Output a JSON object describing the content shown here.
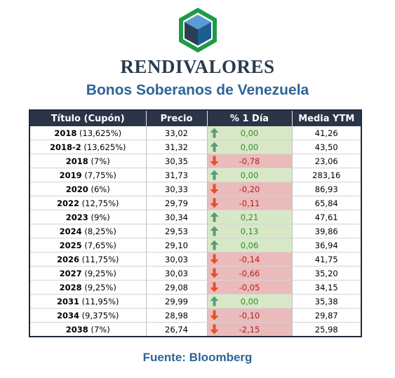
{
  "brand": "RENDIVALORES",
  "subtitle": "Bonos Soberanos de Venezuela",
  "table": {
    "headers": [
      "Título (Cupón)",
      "Precio",
      "% 1 Día",
      "Media YTM"
    ],
    "rows": [
      {
        "year": "2018",
        "coupon": "(13,625%)",
        "price": "33,02",
        "change": "0,00",
        "dir": "up",
        "ytm": "41,26"
      },
      {
        "year": "2018-2",
        "coupon": "(13,625%)",
        "price": "31,32",
        "change": "0,00",
        "dir": "up",
        "ytm": "43,50"
      },
      {
        "year": "2018",
        "coupon": "(7%)",
        "price": "30,35",
        "change": "-0,78",
        "dir": "down",
        "ytm": "23,06"
      },
      {
        "year": "2019",
        "coupon": "(7,75%)",
        "price": "31,73",
        "change": "0,00",
        "dir": "up",
        "ytm": "283,16"
      },
      {
        "year": "2020",
        "coupon": "(6%)",
        "price": "30,33",
        "change": "-0,20",
        "dir": "down",
        "ytm": "86,93"
      },
      {
        "year": "2022",
        "coupon": "(12,75%)",
        "price": "29,79",
        "change": "-0,11",
        "dir": "down",
        "ytm": "65,84"
      },
      {
        "year": "2023",
        "coupon": "(9%)",
        "price": "30,34",
        "change": "0,21",
        "dir": "up",
        "ytm": "47,61"
      },
      {
        "year": "2024",
        "coupon": "(8,25%)",
        "price": "29,53",
        "change": "0,13",
        "dir": "up",
        "ytm": "39,86"
      },
      {
        "year": "2025",
        "coupon": "(7,65%)",
        "price": "29,10",
        "change": "0,06",
        "dir": "up",
        "ytm": "36,94"
      },
      {
        "year": "2026",
        "coupon": "(11,75%)",
        "price": "30,03",
        "change": "-0,14",
        "dir": "down",
        "ytm": "41,75"
      },
      {
        "year": "2027",
        "coupon": "(9,25%)",
        "price": "30,03",
        "change": "-0,66",
        "dir": "down",
        "ytm": "35,20"
      },
      {
        "year": "2028",
        "coupon": "(9,25%)",
        "price": "29,08",
        "change": "-0,05",
        "dir": "down",
        "ytm": "34,15"
      },
      {
        "year": "2031",
        "coupon": "(11,95%)",
        "price": "29,99",
        "change": "0,00",
        "dir": "up",
        "ytm": "35,38"
      },
      {
        "year": "2034",
        "coupon": "(9,375%)",
        "price": "28,98",
        "change": "-0,10",
        "dir": "down",
        "ytm": "29,87"
      },
      {
        "year": "2038",
        "coupon": "(7%)",
        "price": "26,74",
        "change": "-2,15",
        "dir": "down",
        "ytm": "25,98"
      }
    ]
  },
  "source": "Fuente: Bloomberg",
  "colors": {
    "up_bg": "#d8e8c6",
    "up_text": "#2f8a2f",
    "up_arrow": "#5a9a7a",
    "down_bg": "#ebbbbb",
    "down_text": "#b01e1e",
    "down_arrow": "#e2512a",
    "header_bg": "#2b3547",
    "title_blue": "#2e6496"
  },
  "icons": {
    "logo": "cube-hexagon-logo",
    "up": "arrow-up-icon",
    "down": "arrow-down-icon"
  }
}
